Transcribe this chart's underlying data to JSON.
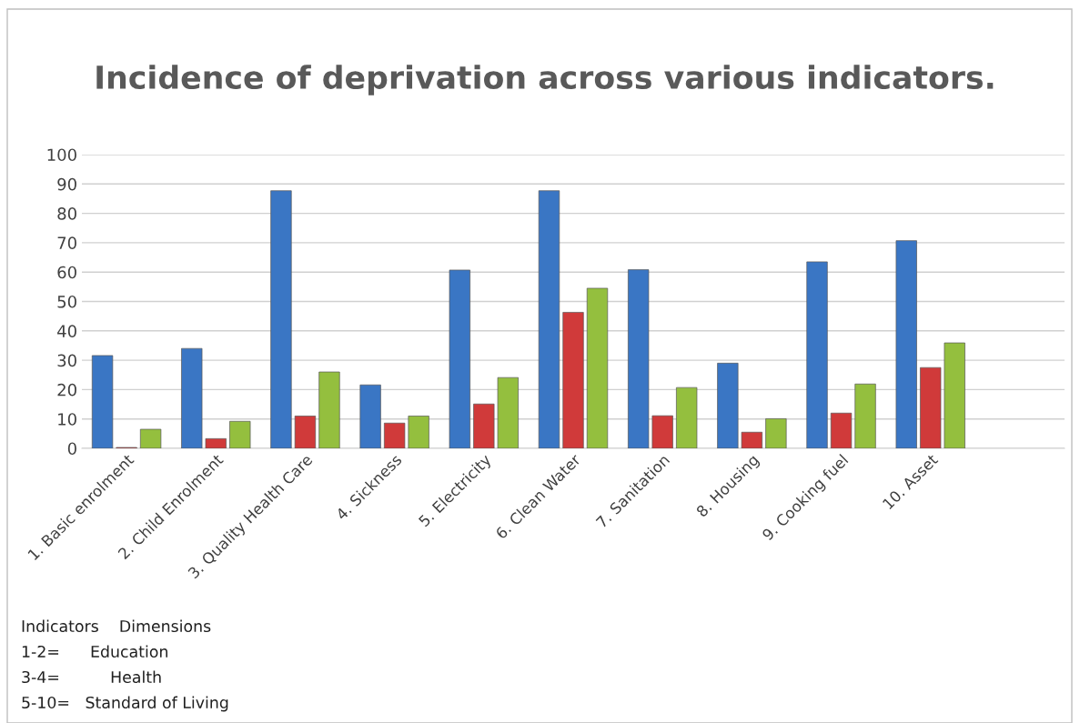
{
  "chart_data": {
    "type": "bar",
    "title": "Incidence of deprivation across various indicators.",
    "categories": [
      "1. Basic enrolment",
      "2. Child Enrolment",
      "3. Quality Health Care",
      "4. Sickness",
      "5. Electricity",
      "6. Clean Water",
      "7. Sanitation",
      "8. Housing",
      "9. Cooking fuel",
      "10. Asset",
      null
    ],
    "series": [
      {
        "color": "#3a76c4",
        "values": [
          31.6,
          34,
          87.7,
          21.6,
          60.7,
          87.7,
          60.8,
          29,
          63.5,
          70.7,
          null
        ]
      },
      {
        "color": "#d03a3a",
        "values": [
          0.3,
          3.3,
          11,
          8.6,
          15.1,
          46.3,
          11.1,
          5.5,
          12,
          27.5,
          null
        ]
      },
      {
        "color": "#94bf3e",
        "values": [
          6.5,
          9.2,
          26,
          11,
          24.1,
          54.5,
          20.7,
          10.1,
          21.9,
          35.9,
          null
        ]
      }
    ],
    "ylim": [
      0,
      100
    ],
    "yticks": [
      0,
      10,
      20,
      30,
      40,
      50,
      60,
      70,
      80,
      90,
      100
    ],
    "grid": "y",
    "annotations": [
      "Indicators    Dimensions",
      "1-2=      Education",
      "3-4=          Health",
      "5-10=   Standard of Living"
    ]
  }
}
